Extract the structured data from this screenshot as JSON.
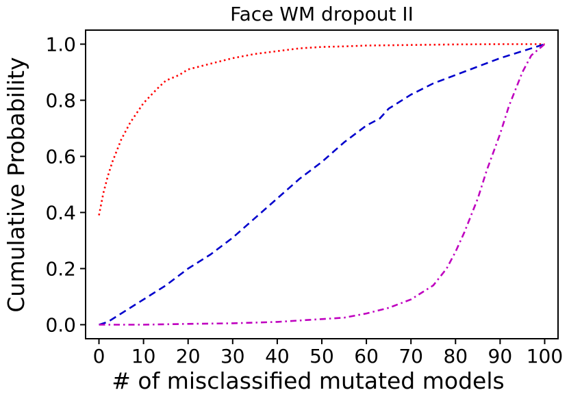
{
  "chart_data": {
    "type": "line",
    "title": "Face WM dropout II",
    "xlabel": "# of misclassified mutated models",
    "ylabel": "Cumulative Probability",
    "xlim": [
      -3,
      103
    ],
    "ylim": [
      -0.05,
      1.05
    ],
    "grid": false,
    "legend": "none",
    "xticks": [
      0,
      10,
      20,
      30,
      40,
      50,
      60,
      70,
      80,
      90,
      100
    ],
    "xtick_labels": [
      "0",
      "10",
      "20",
      "30",
      "40",
      "50",
      "60",
      "70",
      "80",
      "90",
      "100"
    ],
    "yticks": [
      0.0,
      0.2,
      0.4,
      0.6,
      0.8,
      1.0
    ],
    "ytick_labels": [
      "0.0",
      "0.2",
      "0.4",
      "0.6",
      "0.8",
      "1.0"
    ],
    "series": [
      {
        "name": "red-dotted-cdf",
        "color": "#ff0000",
        "linestyle": "dotted",
        "x": [
          0,
          1,
          2,
          3,
          4,
          5,
          7,
          10,
          13,
          15,
          18,
          20,
          25,
          30,
          35,
          40,
          45,
          50,
          55,
          60,
          70,
          80,
          90,
          100
        ],
        "y": [
          0.39,
          0.47,
          0.53,
          0.58,
          0.62,
          0.66,
          0.72,
          0.79,
          0.84,
          0.87,
          0.89,
          0.91,
          0.93,
          0.95,
          0.965,
          0.975,
          0.985,
          0.99,
          0.992,
          0.995,
          0.997,
          0.999,
          1.0,
          1.0
        ]
      },
      {
        "name": "blue-dashed-cdf",
        "color": "#0000cc",
        "linestyle": "dashed",
        "x": [
          0,
          2,
          5,
          10,
          15,
          20,
          25,
          30,
          35,
          40,
          45,
          50,
          55,
          60,
          63,
          65,
          70,
          75,
          80,
          85,
          90,
          95,
          100
        ],
        "y": [
          0.0,
          0.01,
          0.04,
          0.09,
          0.14,
          0.2,
          0.25,
          0.31,
          0.38,
          0.45,
          0.52,
          0.58,
          0.65,
          0.71,
          0.735,
          0.77,
          0.82,
          0.86,
          0.89,
          0.92,
          0.95,
          0.975,
          1.0
        ]
      },
      {
        "name": "magenta-dashdot-cdf",
        "color": "#bf00bf",
        "linestyle": "dashdot",
        "x": [
          0,
          10,
          20,
          30,
          40,
          45,
          50,
          55,
          60,
          65,
          70,
          72,
          75,
          78,
          80,
          82,
          85,
          87,
          90,
          92,
          95,
          97,
          100
        ],
        "y": [
          0.0,
          0.0,
          0.003,
          0.005,
          0.01,
          0.015,
          0.02,
          0.025,
          0.04,
          0.06,
          0.09,
          0.11,
          0.14,
          0.2,
          0.26,
          0.33,
          0.45,
          0.55,
          0.68,
          0.78,
          0.9,
          0.96,
          1.0
        ]
      }
    ]
  }
}
